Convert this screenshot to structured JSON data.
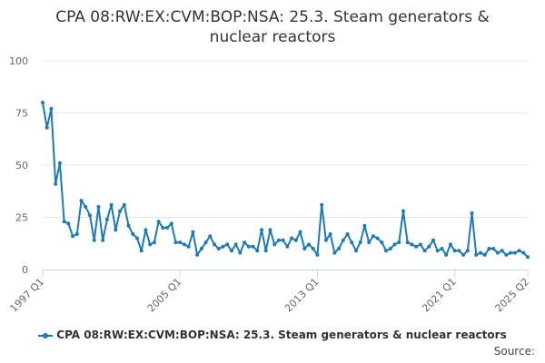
{
  "chart_data": {
    "type": "line",
    "title": "CPA 08:RW:EX:CVM:BOP:NSA: 25.3. Steam generators & nuclear reactors",
    "title_lines": [
      "CPA 08:RW:EX:CVM:BOP:NSA: 25.3. Steam generators &",
      "nuclear reactors"
    ],
    "xlabel": "",
    "ylabel": "",
    "ylim": [
      0,
      100
    ],
    "yticks": [
      "0",
      "25",
      "50",
      "75",
      "100"
    ],
    "xticks": [
      "1997 Q1",
      "2005 Q1",
      "2013 Q1",
      "2021 Q1",
      "2025 Q2"
    ],
    "x_start": "1997 Q1",
    "x_end": "2025 Q2",
    "grid": true,
    "legend_position": "bottom",
    "series": [
      {
        "name": "CPA 08:RW:EX:CVM:BOP:NSA: 25.3. Steam generators & nuclear reactors",
        "color": "#1f7ab4",
        "values": [
          80,
          68,
          77,
          41,
          51,
          23,
          22,
          16,
          17,
          33,
          30,
          26,
          14,
          30,
          14,
          24,
          31,
          19,
          28,
          31,
          21,
          17,
          15,
          9,
          19,
          12,
          13,
          23,
          20,
          20,
          22,
          13,
          13,
          12,
          11,
          18,
          7,
          10,
          13,
          16,
          12,
          10,
          11,
          12,
          9,
          12,
          8,
          13,
          11,
          11,
          9,
          19,
          9,
          19,
          12,
          14,
          14,
          11,
          15,
          14,
          18,
          10,
          12,
          10,
          7,
          31,
          14,
          17,
          8,
          10,
          14,
          17,
          13,
          9,
          13,
          21,
          13,
          16,
          15,
          13,
          9,
          10,
          12,
          13,
          28,
          13,
          12,
          11,
          12,
          9,
          11,
          14,
          9,
          10,
          7,
          12,
          9,
          9,
          7,
          9,
          27,
          7,
          8,
          7,
          10,
          10,
          8,
          9,
          7,
          8,
          8,
          9,
          8,
          6
        ]
      }
    ]
  },
  "legend": {
    "label": "CPA 08:RW:EX:CVM:BOP:NSA: 25.3. Steam generators & nuclear reactors"
  },
  "source_label": "Source:"
}
